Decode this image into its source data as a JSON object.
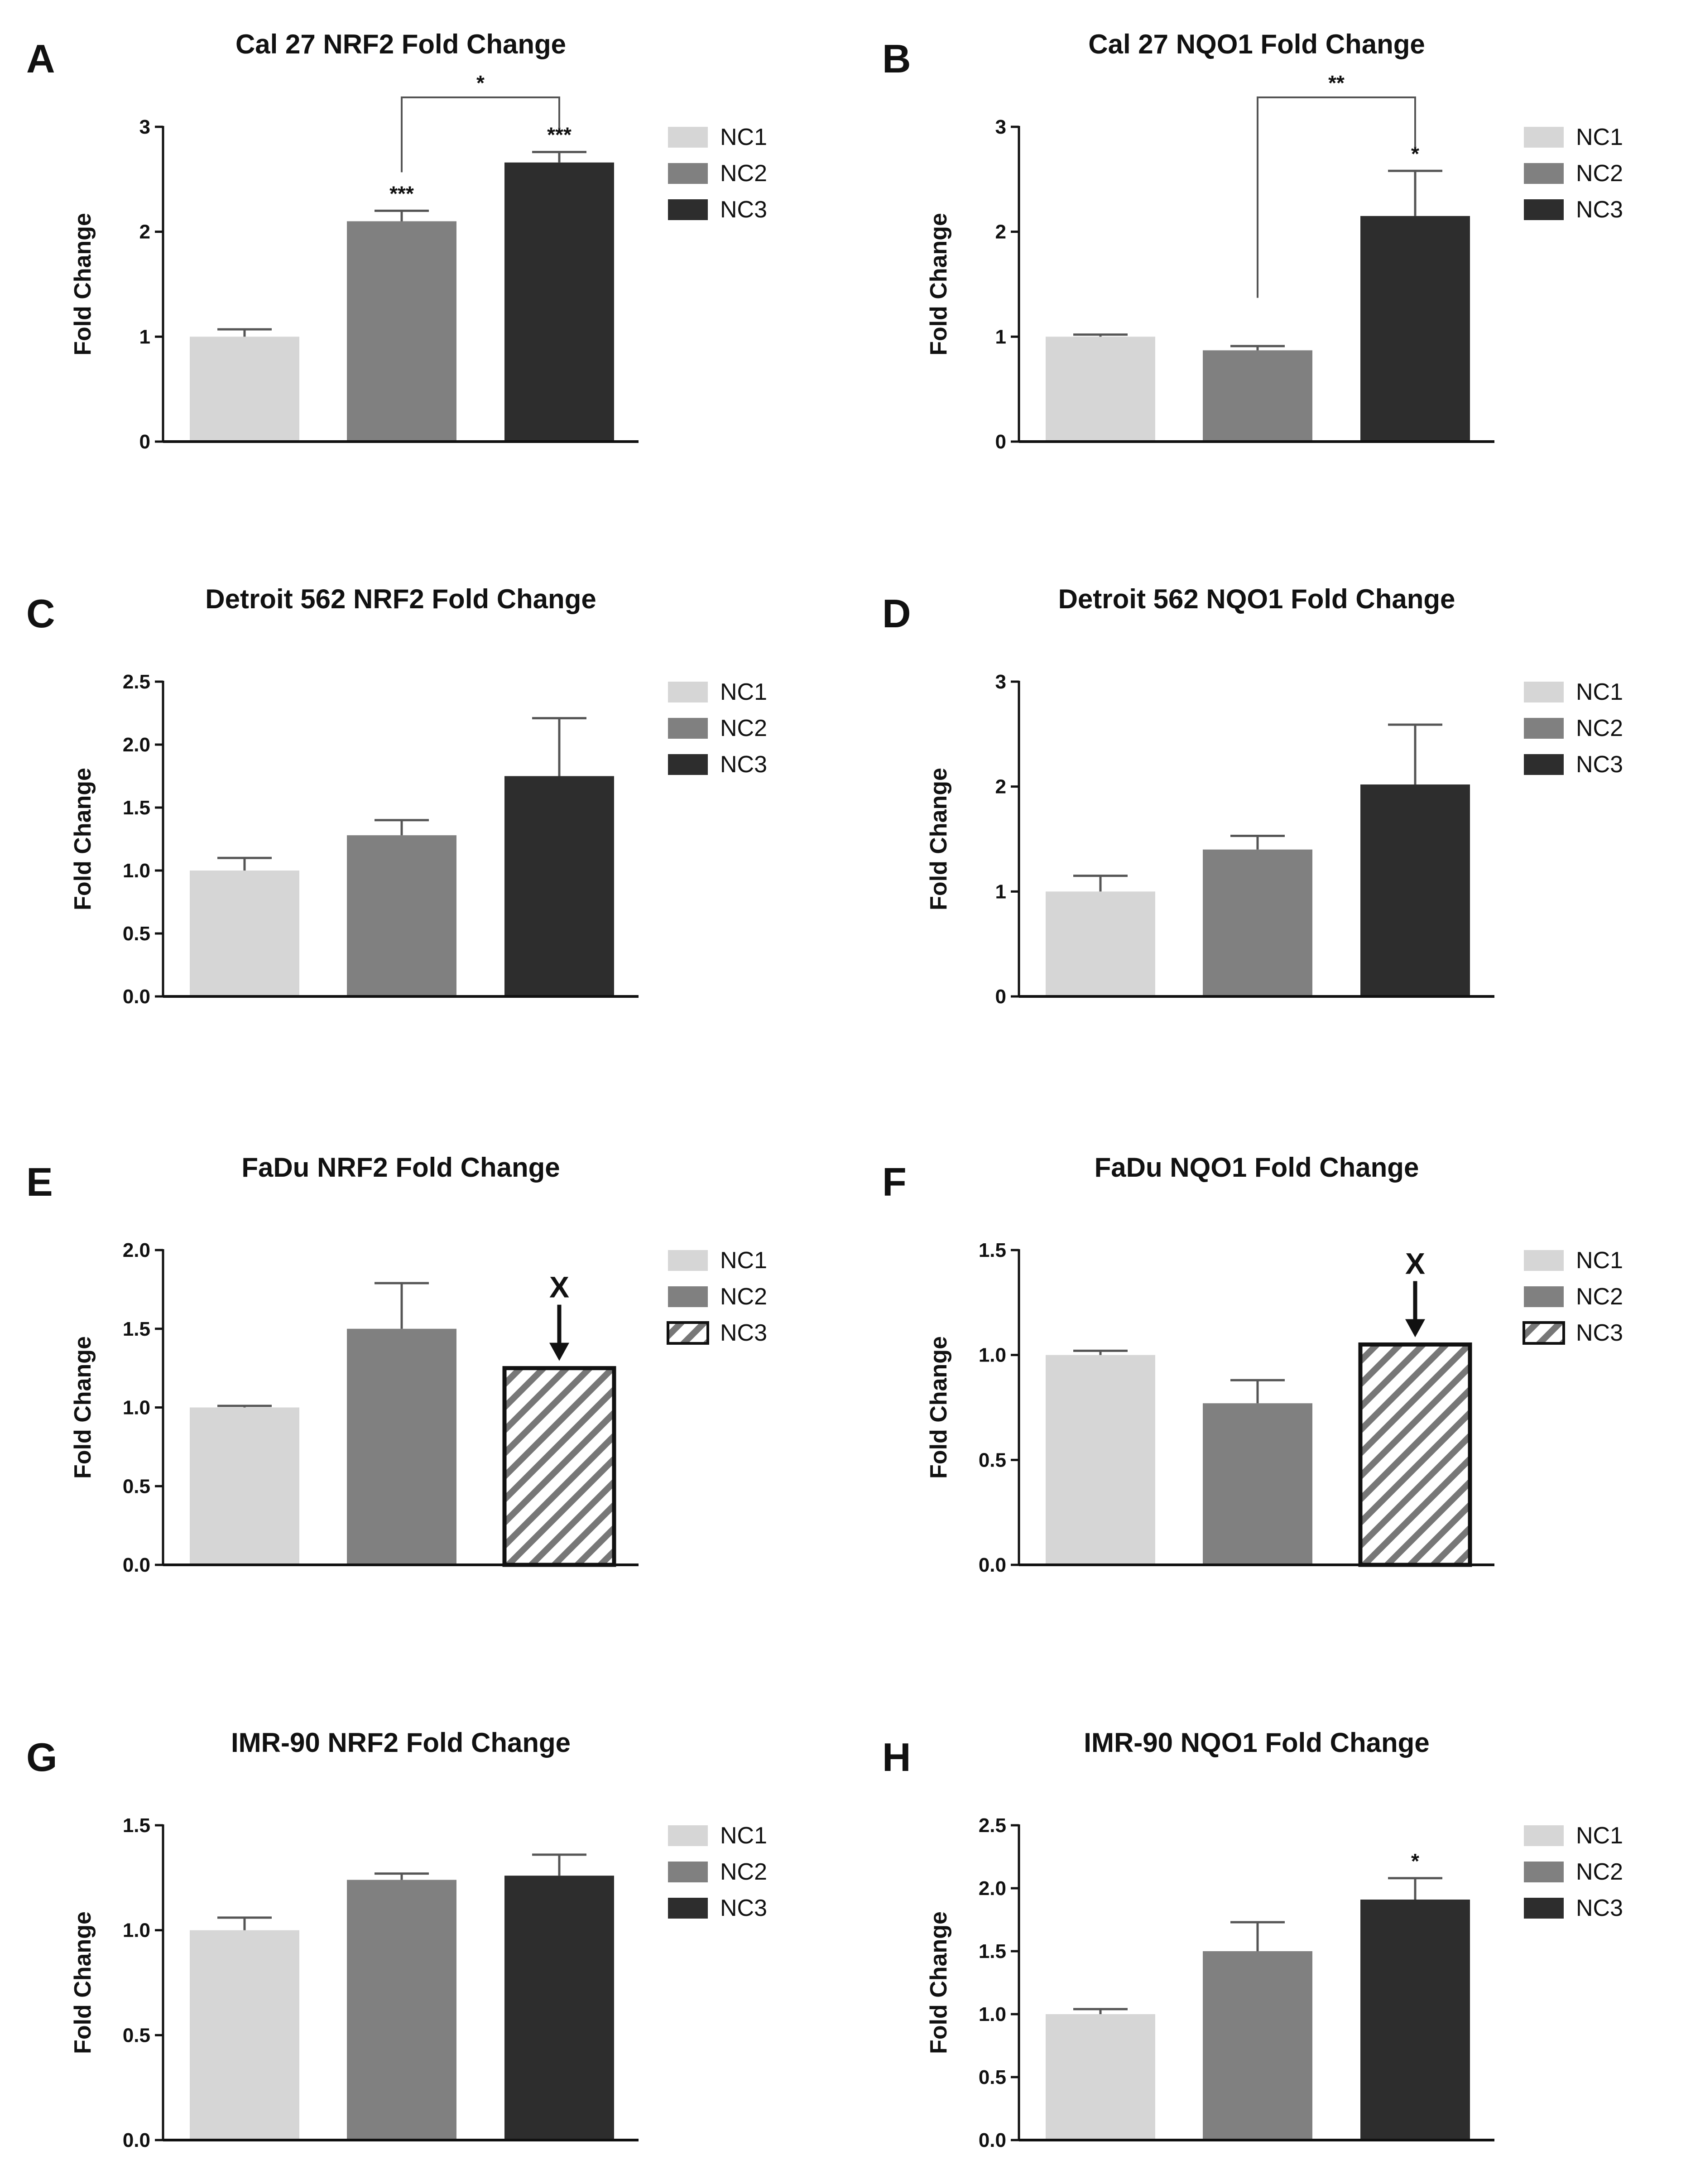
{
  "colors": {
    "NC1": "#d6d6d6",
    "NC2": "#808080",
    "NC3": "#2d2d2d",
    "axis": "#111111",
    "background": "#ffffff"
  },
  "chart_data": [
    {
      "panel": "A",
      "type": "bar",
      "title": "Cal 27 NRF2 Fold Change",
      "xlabel": "",
      "ylabel": "Fold Change",
      "categories": [
        "NC1",
        "NC2",
        "NC3"
      ],
      "values": [
        1.0,
        2.1,
        2.66
      ],
      "errors": [
        0.07,
        0.1,
        0.1
      ],
      "ylim": [
        0,
        3
      ],
      "yticks": [
        "0",
        "1",
        "2",
        "3"
      ],
      "legend": [
        "NC1",
        "NC2",
        "NC3"
      ],
      "legend_position": "right",
      "hatched": [],
      "bar_stars": [
        "",
        "***",
        "***"
      ],
      "brackets": [
        {
          "from": 1,
          "to": 2,
          "label": "*"
        }
      ],
      "arrow_marks": []
    },
    {
      "panel": "B",
      "type": "bar",
      "title": "Cal 27 NQO1 Fold Change",
      "xlabel": "",
      "ylabel": "Fold Change",
      "categories": [
        "NC1",
        "NC2",
        "NC3"
      ],
      "values": [
        1.0,
        0.87,
        2.15
      ],
      "errors": [
        0.02,
        0.04,
        0.43
      ],
      "ylim": [
        0,
        3
      ],
      "yticks": [
        "0",
        "1",
        "2",
        "3"
      ],
      "legend": [
        "NC1",
        "NC2",
        "NC3"
      ],
      "legend_position": "right",
      "hatched": [],
      "bar_stars": [
        "",
        "",
        "*"
      ],
      "brackets": [
        {
          "from": 1,
          "to": 2,
          "label": "**"
        }
      ],
      "arrow_marks": []
    },
    {
      "panel": "C",
      "type": "bar",
      "title": "Detroit 562 NRF2 Fold Change",
      "xlabel": "",
      "ylabel": "Fold Change",
      "categories": [
        "NC1",
        "NC2",
        "NC3"
      ],
      "values": [
        1.0,
        1.28,
        1.75
      ],
      "errors": [
        0.1,
        0.12,
        0.46
      ],
      "ylim": [
        0,
        2.5
      ],
      "yticks": [
        "0.0",
        "0.5",
        "1.0",
        "1.5",
        "2.0",
        "2.5"
      ],
      "legend": [
        "NC1",
        "NC2",
        "NC3"
      ],
      "legend_position": "right",
      "hatched": [],
      "bar_stars": [
        "",
        "",
        ""
      ],
      "brackets": [],
      "arrow_marks": []
    },
    {
      "panel": "D",
      "type": "bar",
      "title": "Detroit 562 NQO1 Fold Change",
      "xlabel": "",
      "ylabel": "Fold Change",
      "categories": [
        "NC1",
        "NC2",
        "NC3"
      ],
      "values": [
        1.0,
        1.4,
        2.02
      ],
      "errors": [
        0.15,
        0.13,
        0.57
      ],
      "ylim": [
        0,
        3
      ],
      "yticks": [
        "0",
        "1",
        "2",
        "3"
      ],
      "legend": [
        "NC1",
        "NC2",
        "NC3"
      ],
      "legend_position": "right",
      "hatched": [],
      "bar_stars": [
        "",
        "",
        ""
      ],
      "brackets": [],
      "arrow_marks": []
    },
    {
      "panel": "E",
      "type": "bar",
      "title": "FaDu NRF2 Fold  Change",
      "xlabel": "",
      "ylabel": "Fold Change",
      "categories": [
        "NC1",
        "NC2",
        "NC3"
      ],
      "values": [
        1.0,
        1.5,
        1.25
      ],
      "errors": [
        0.01,
        0.29,
        0
      ],
      "ylim": [
        0,
        2.0
      ],
      "yticks": [
        "0.0",
        "0.5",
        "1.0",
        "1.5",
        "2.0"
      ],
      "legend": [
        "NC1",
        "NC2",
        "NC3"
      ],
      "legend_position": "right",
      "hatched": [
        2
      ],
      "bar_stars": [
        "",
        "",
        ""
      ],
      "brackets": [],
      "arrow_marks": [
        {
          "bar": 2,
          "label": "X"
        }
      ]
    },
    {
      "panel": "F",
      "type": "bar",
      "title": "FaDu NQO1 Fold Change",
      "xlabel": "",
      "ylabel": "Fold Change",
      "categories": [
        "NC1",
        "NC2",
        "NC3"
      ],
      "values": [
        1.0,
        0.77,
        1.05
      ],
      "errors": [
        0.02,
        0.11,
        0
      ],
      "ylim": [
        0,
        1.5
      ],
      "yticks": [
        "0.0",
        "0.5",
        "1.0",
        "1.5"
      ],
      "legend": [
        "NC1",
        "NC2",
        "NC3"
      ],
      "legend_position": "right",
      "hatched": [
        2
      ],
      "bar_stars": [
        "",
        "",
        ""
      ],
      "brackets": [],
      "arrow_marks": [
        {
          "bar": 2,
          "label": "X"
        }
      ]
    },
    {
      "panel": "G",
      "type": "bar",
      "title": "IMR-90 NRF2 Fold Change",
      "xlabel": "",
      "ylabel": "Fold Change",
      "categories": [
        "NC1",
        "NC2",
        "NC3"
      ],
      "values": [
        1.0,
        1.24,
        1.26
      ],
      "errors": [
        0.06,
        0.03,
        0.1
      ],
      "ylim": [
        0,
        1.5
      ],
      "yticks": [
        "0.0",
        "0.5",
        "1.0",
        "1.5"
      ],
      "legend": [
        "NC1",
        "NC2",
        "NC3"
      ],
      "legend_position": "right",
      "hatched": [],
      "bar_stars": [
        "",
        "",
        ""
      ],
      "brackets": [],
      "arrow_marks": []
    },
    {
      "panel": "H",
      "type": "bar",
      "title": "IMR-90 NQO1 Fold Change",
      "xlabel": "",
      "ylabel": "Fold Change",
      "categories": [
        "NC1",
        "NC2",
        "NC3"
      ],
      "values": [
        1.0,
        1.5,
        1.91
      ],
      "errors": [
        0.04,
        0.23,
        0.17
      ],
      "ylim": [
        0,
        2.5
      ],
      "yticks": [
        "0.0",
        "0.5",
        "1.0",
        "1.5",
        "2.0",
        "2.5"
      ],
      "legend": [
        "NC1",
        "NC2",
        "NC3"
      ],
      "legend_position": "right",
      "hatched": [],
      "bar_stars": [
        "",
        "",
        "*"
      ],
      "brackets": [],
      "arrow_marks": []
    }
  ]
}
